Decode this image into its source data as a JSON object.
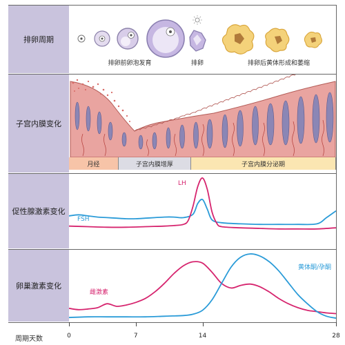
{
  "rows": {
    "ovulation_cycle": "排卵周期",
    "endometrium": "子宫内膜变化",
    "gonadotropin": "促性腺激素变化",
    "ovarian_hormone": "卵巢激素变化"
  },
  "ovulation": {
    "pre_label": "排卵前卵泡发育",
    "ovulation_label": "排卵",
    "post_label": "排卵后黄体形成和萎缩"
  },
  "phases": [
    {
      "label": "月经",
      "start_day": 0,
      "end_day": 5.2
    },
    {
      "label": "子宫内膜增厚",
      "start_day": 5.2,
      "end_day": 12.8
    },
    {
      "label": "子宫内膜分泌期",
      "start_day": 12.8,
      "end_day": 28
    }
  ],
  "axis": {
    "title": "周期天数",
    "ticks": [
      "0",
      "7",
      "14",
      "28"
    ]
  },
  "colors": {
    "label_bg": "#c9c3dd",
    "lh": "#d6246e",
    "fsh": "#2a9bd8",
    "estrogen": "#d6246e",
    "progesterone": "#2a9bd8",
    "menses_phase": "#f7c4a8",
    "proliferative_phase": "#dcdce4",
    "secretory_phase": "#fbe6b2",
    "tissue": "#e9a4a0",
    "follicle": "#c6b7e2",
    "corpus_luteum": "#f4d27a"
  },
  "chart_data": [
    {
      "type": "line",
      "series": [
        {
          "name": "FSH",
          "x": [
            0,
            1,
            2,
            3,
            4,
            5,
            6,
            7,
            8,
            9,
            10,
            11,
            12,
            13,
            13.5,
            14,
            14.5,
            15,
            16,
            18,
            20,
            22,
            24,
            26,
            27,
            28
          ],
          "y": [
            0.33,
            0.35,
            0.33,
            0.31,
            0.3,
            0.29,
            0.28,
            0.28,
            0.29,
            0.3,
            0.31,
            0.31,
            0.3,
            0.36,
            0.55,
            0.62,
            0.45,
            0.26,
            0.21,
            0.19,
            0.18,
            0.18,
            0.18,
            0.19,
            0.3,
            0.42
          ]
        },
        {
          "name": "LH",
          "x": [
            0,
            2,
            4,
            6,
            8,
            10,
            11,
            12,
            12.5,
            13,
            13.5,
            14,
            14.5,
            15,
            15.5,
            16,
            18,
            20,
            22,
            24,
            26,
            28
          ],
          "y": [
            0.15,
            0.14,
            0.13,
            0.13,
            0.14,
            0.15,
            0.16,
            0.18,
            0.25,
            0.5,
            0.85,
            1.0,
            0.8,
            0.4,
            0.2,
            0.14,
            0.12,
            0.11,
            0.1,
            0.1,
            0.1,
            0.12
          ]
        }
      ],
      "xlim": [
        0,
        28
      ]
    },
    {
      "type": "line",
      "series": [
        {
          "name": "雌激素",
          "x": [
            0,
            1,
            2,
            3,
            4,
            5,
            6,
            7,
            8,
            9,
            10,
            11,
            12,
            13,
            14,
            15,
            16,
            17,
            18,
            19,
            20,
            21,
            22,
            23,
            24,
            25,
            26,
            27,
            28
          ],
          "y": [
            0.17,
            0.15,
            0.16,
            0.18,
            0.24,
            0.2,
            0.22,
            0.26,
            0.32,
            0.42,
            0.55,
            0.7,
            0.82,
            0.88,
            0.86,
            0.72,
            0.55,
            0.48,
            0.52,
            0.54,
            0.5,
            0.42,
            0.32,
            0.24,
            0.18,
            0.14,
            0.12,
            0.1,
            0.09
          ]
        },
        {
          "name": "黄体酮/孕酮",
          "x": [
            0,
            2,
            4,
            6,
            8,
            10,
            12,
            13,
            14,
            15,
            16,
            17,
            18,
            19,
            20,
            21,
            22,
            23,
            24,
            25,
            26,
            27,
            28
          ],
          "y": [
            0.03,
            0.04,
            0.04,
            0.04,
            0.04,
            0.05,
            0.06,
            0.08,
            0.14,
            0.3,
            0.55,
            0.8,
            0.95,
            1.0,
            0.97,
            0.88,
            0.74,
            0.56,
            0.38,
            0.24,
            0.12,
            0.05,
            0.02
          ]
        }
      ],
      "xlim": [
        0,
        28
      ]
    }
  ]
}
